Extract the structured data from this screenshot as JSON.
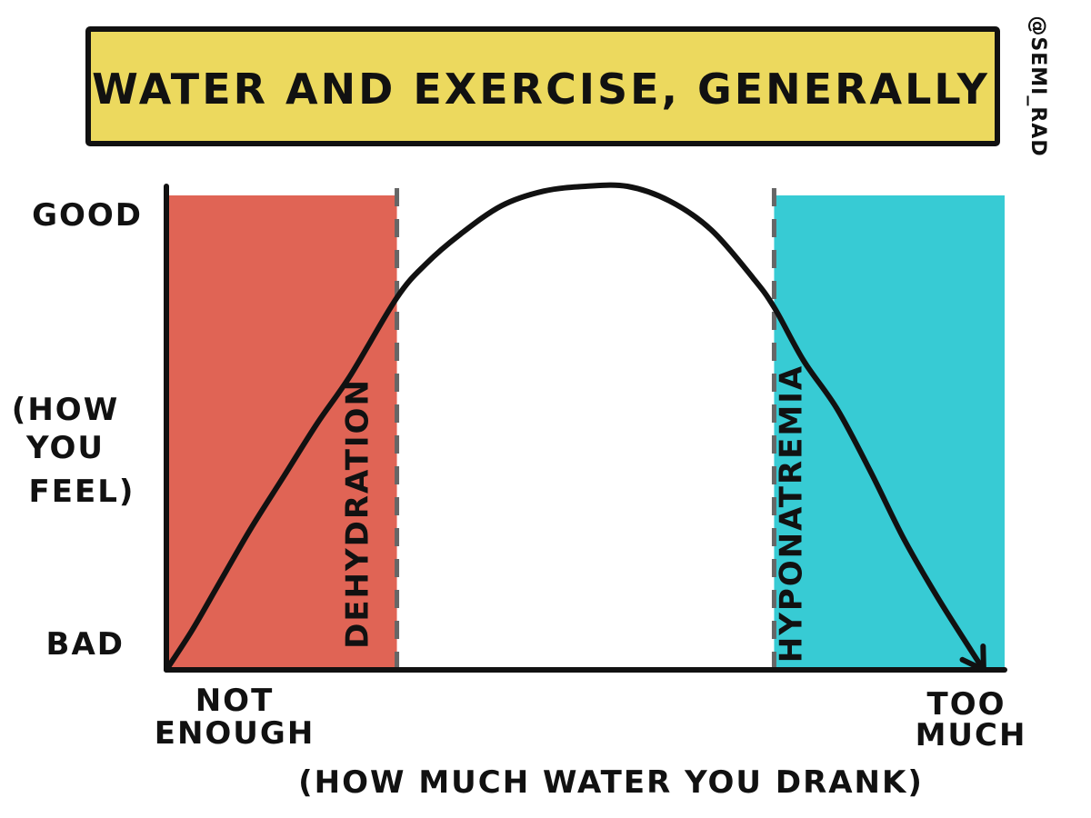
{
  "chart_data": {
    "type": "line",
    "title": "WATER AND EXERCISE, GENERALLY",
    "watermark": "@SEMI_RAD",
    "ylabel_lines": [
      "(HOW",
      "YOU",
      "FEEL)"
    ],
    "y_top_label": "GOOD",
    "y_bottom_label": "BAD",
    "x_left_label_lines": [
      "NOT",
      "ENOUGH"
    ],
    "x_right_label_lines": [
      "TOO",
      "MUCH"
    ],
    "xlabel": "(HOW MUCH WATER YOU DRANK)",
    "xlim": [
      0,
      100
    ],
    "ylim": [
      0,
      100
    ],
    "regions": [
      {
        "name": "DEHYDRATION",
        "x_start": 0,
        "x_end": 27.5,
        "color": "#e06455"
      },
      {
        "name": "HYPONATREMIA",
        "x_start": 72.5,
        "x_end": 100,
        "color": "#37cbd4"
      }
    ],
    "series": [
      {
        "name": "how you feel",
        "x": [
          0,
          3,
          6,
          10,
          14,
          18,
          22,
          27.5,
          31,
          35,
          40,
          45,
          50,
          55,
          60,
          65,
          70,
          72.5,
          76,
          80,
          84,
          88,
          92,
          96,
          97.5
        ],
        "y": [
          0,
          8,
          17,
          29,
          40,
          51,
          61,
          77,
          84,
          90,
          96,
          99,
          100,
          100,
          97,
          91,
          81,
          75,
          64,
          54,
          41,
          27,
          15,
          4,
          0
        ]
      }
    ],
    "colors": {
      "title_banner": "#ecd95e",
      "line": "#111111",
      "divider": "#666666"
    }
  }
}
